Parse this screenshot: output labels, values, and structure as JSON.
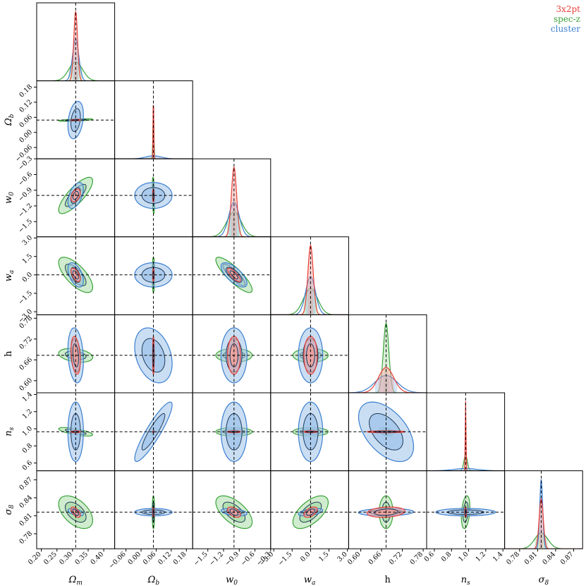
{
  "chart_data": {
    "type": "corner",
    "title": "",
    "parameters": [
      {
        "key": "Om",
        "label": "Ω_m",
        "sub": "m",
        "base": "Ω",
        "fiducial": 0.31,
        "range": [
          0.185,
          0.435
        ],
        "ticks": [
          "0.20",
          "0.25",
          "0.30",
          "0.35",
          "0.40"
        ],
        "tickvals": [
          0.2,
          0.25,
          0.3,
          0.35,
          0.4
        ]
      },
      {
        "key": "Ob",
        "label": "Ω_b",
        "sub": "b",
        "base": "Ω",
        "fiducial": 0.049,
        "range": [
          -0.105,
          0.205
        ],
        "ticks": [
          "−0.06",
          "0.00",
          "0.06",
          "0.12",
          "0.18"
        ],
        "tickvals": [
          -0.06,
          0.0,
          0.06,
          0.12,
          0.18
        ]
      },
      {
        "key": "w0",
        "label": "w_0",
        "sub": "0",
        "base": "w",
        "fiducial": -1.0,
        "range": [
          -1.79,
          -0.3
        ],
        "ticks": [
          "−1.5",
          "−1.2",
          "−0.9",
          "−0.6",
          "−0.3"
        ],
        "tickvals": [
          -1.5,
          -1.2,
          -0.9,
          -0.6,
          -0.3
        ]
      },
      {
        "key": "wa",
        "label": "w_a",
        "sub": "a",
        "base": "w",
        "fiducial": 0.0,
        "range": [
          -3.25,
          3.1
        ],
        "ticks": [
          "−3.0",
          "−1.5",
          "0.0",
          "1.5",
          "3.0"
        ],
        "tickvals": [
          -3.0,
          -1.5,
          0.0,
          1.5,
          3.0
        ]
      },
      {
        "key": "h",
        "label": "h",
        "sub": "",
        "base": "h",
        "fiducial": 0.673,
        "range": [
          0.565,
          0.79
        ],
        "ticks": [
          "0.60",
          "0.66",
          "0.72",
          "0.78"
        ],
        "tickvals": [
          0.6,
          0.66,
          0.72,
          0.78
        ]
      },
      {
        "key": "ns",
        "label": "n_s",
        "sub": "s",
        "base": "n",
        "fiducial": 0.965,
        "range": [
          0.51,
          1.42
        ],
        "ticks": [
          "0.6",
          "0.8",
          "1.0",
          "1.2",
          "1.4"
        ],
        "tickvals": [
          0.6,
          0.8,
          1.0,
          1.2,
          1.4
        ]
      },
      {
        "key": "s8",
        "label": "σ_8",
        "sub": "8",
        "base": "σ",
        "fiducial": 0.816,
        "range": [
          0.755,
          0.885
        ],
        "ticks": [
          "0.78",
          "0.81",
          "0.84",
          "0.87"
        ],
        "tickvals": [
          0.78,
          0.81,
          0.84,
          0.87
        ]
      }
    ],
    "yticks": {
      "Ob": {
        "ticks": [
          "−0.06",
          "0.00",
          "0.06",
          "0.12",
          "0.18"
        ],
        "tickvals": [
          -0.06,
          0.0,
          0.06,
          0.12,
          0.18
        ]
      },
      "w0": {
        "ticks": [
          "−1.5",
          "−1.2",
          "−0.9",
          "−0.6",
          "−0.3"
        ],
        "tickvals": [
          -1.5,
          -1.2,
          -0.9,
          -0.6,
          -0.3
        ]
      },
      "wa": {
        "ticks": [
          "−3.0",
          "−1.5",
          "0.0",
          "1.5",
          "3.0"
        ],
        "tickvals": [
          -3.0,
          -1.5,
          0.0,
          1.5,
          3.0
        ]
      },
      "h": {
        "ticks": [
          "0.60",
          "0.66",
          "0.72",
          "0.78"
        ],
        "tickvals": [
          0.6,
          0.66,
          0.72,
          0.78
        ]
      },
      "ns": {
        "ticks": [
          "0.6",
          "0.8",
          "1.0",
          "1.2",
          "1.4"
        ],
        "tickvals": [
          0.6,
          0.8,
          1.0,
          1.2,
          1.4
        ]
      },
      "s8": {
        "ticks": [
          "0.78",
          "0.81",
          "0.84",
          "0.87"
        ],
        "tickvals": [
          0.78,
          0.81,
          0.84,
          0.87
        ]
      }
    },
    "series": [
      {
        "name": "3x2pt",
        "color": "#e8403a",
        "fill": "#f4a09a",
        "sigma": {
          "Om": 0.006,
          "Ob": 0.0013,
          "w0": 0.05,
          "wa": 0.22,
          "h": 0.022,
          "ns": 0.0045,
          "s8": 0.0035
        },
        "corr": {
          "Om-Ob": 0.2,
          "Om-w0": 0.4,
          "Om-wa": -0.6,
          "Om-h": -0.3,
          "Om-s8": -0.6,
          "w0-wa": -0.8,
          "w0-s8": -0.5,
          "wa-s8": 0.5,
          "h-s8": 0.2
        }
      },
      {
        "name": "spec-z",
        "color": "#3aa33a",
        "fill": "#a9dca5",
        "sigma": {
          "Om": 0.022,
          "Ob": 0.002,
          "w0": 0.14,
          "wa": 0.58,
          "h": 0.008,
          "ns": 0.02,
          "s8": 0.011
        },
        "corr": {
          "Om-Ob": 0.6,
          "Om-w0": 0.8,
          "Om-wa": -0.7,
          "Om-h": -0.3,
          "Om-ns": -0.7,
          "Om-s8": -0.5,
          "Ob-w0": -0.3,
          "Ob-ns": 0.8,
          "w0-wa": -0.85,
          "w0-s8": -0.6,
          "wa-s8": 0.6,
          "h-ns": -0.3,
          "ns-s8": 0.3
        }
      },
      {
        "name": "cluster",
        "color": "#3b7fd0",
        "fill": "#9ec3ea",
        "sigma": {
          "Om": 0.01,
          "Ob": 0.03,
          "w0": 0.1,
          "wa": 0.4,
          "h": 0.032,
          "ns": 0.14,
          "s8": 0.0025
        },
        "corr": {
          "Om-Ob": 0.3,
          "Om-w0": 0.5,
          "Om-wa": -0.5,
          "Om-h": -0.2,
          "Om-s8": -0.5,
          "Ob-h": -0.3,
          "Ob-ns": 0.9,
          "w0-wa": -0.7,
          "w0-s8": -0.4,
          "wa-s8": 0.5,
          "h-ns": -0.5,
          "h-s8": 0.1
        }
      }
    ],
    "legend_position": "top-right",
    "grid": false
  }
}
